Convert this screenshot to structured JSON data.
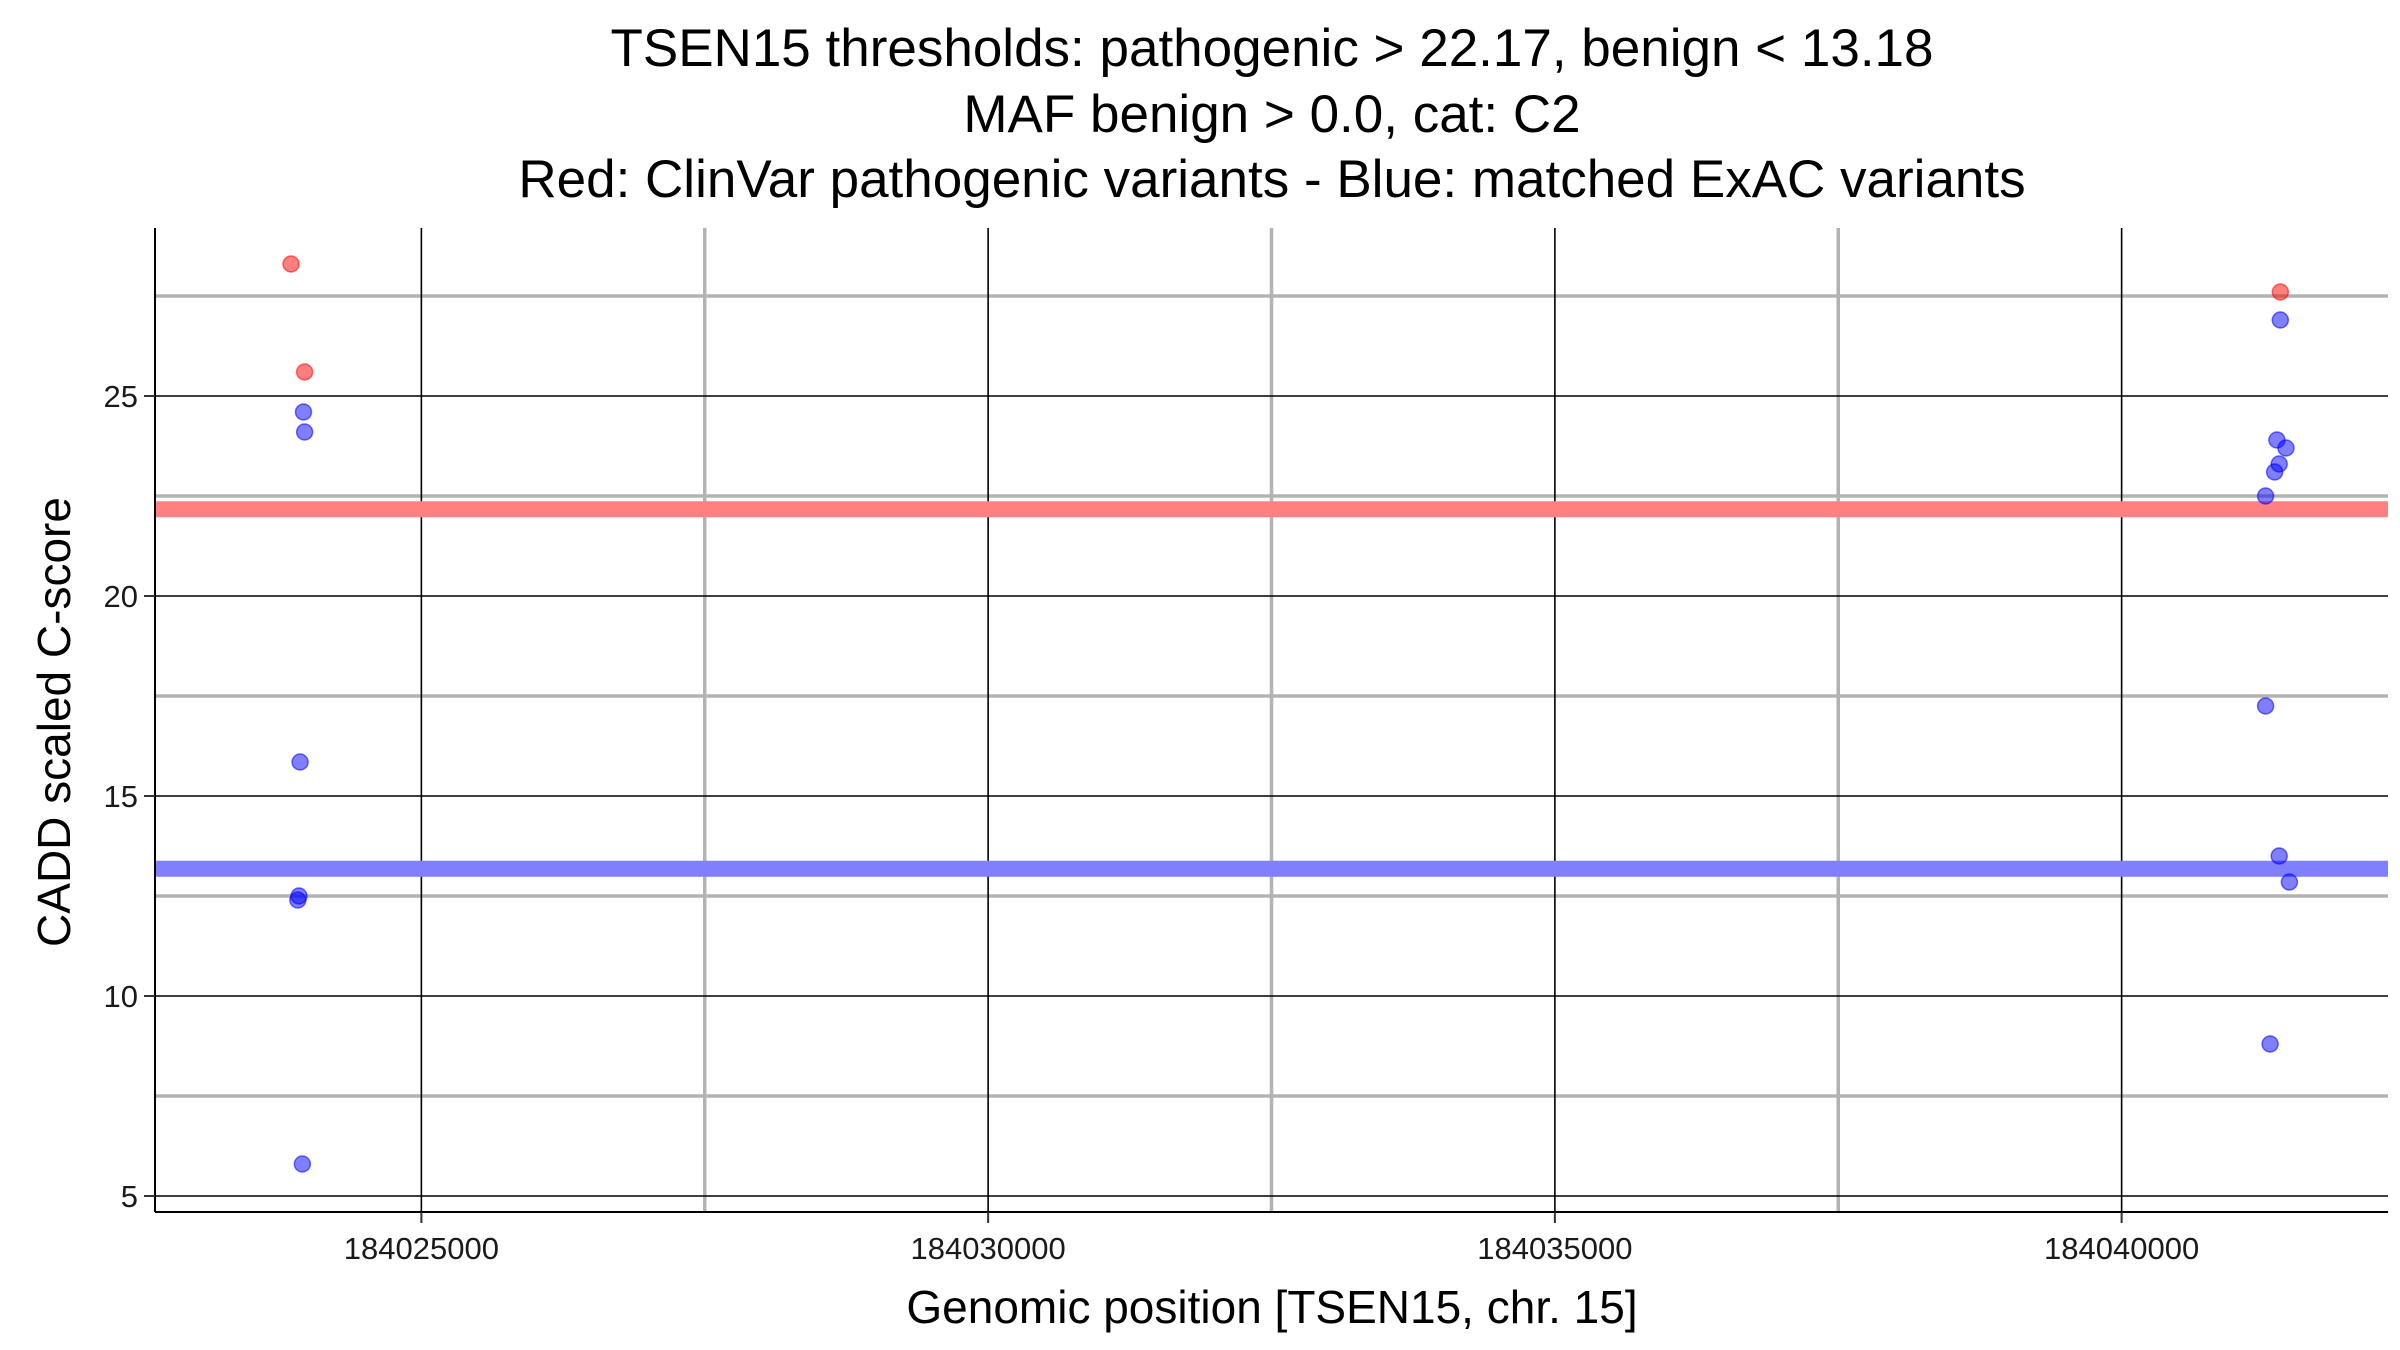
{
  "chart_data": {
    "type": "scatter",
    "title_lines": [
      "TSEN15 thresholds: pathogenic > 22.17, benign < 13.18",
      "MAF benign > 0.0, cat: C2",
      "Red: ClinVar pathogenic variants - Blue: matched ExAC variants"
    ],
    "xlabel": "Genomic position [TSEN15, chr. 15]",
    "ylabel": "CADD scaled C-score",
    "xlim": [
      184022650,
      184042350
    ],
    "ylim": [
      4.6,
      29.2
    ],
    "x_ticks": [
      184025000,
      184030000,
      184035000,
      184040000
    ],
    "x_tick_labels": [
      "184025000",
      "184030000",
      "184035000",
      "184040000"
    ],
    "y_ticks": [
      5,
      10,
      15,
      20,
      25
    ],
    "y_tick_labels": [
      "5",
      "10",
      "15",
      "20",
      "25"
    ],
    "x_minor_grid": [
      184027500,
      184032500,
      184037500
    ],
    "y_minor_grid": [
      7.5,
      12.5,
      17.5,
      22.5,
      27.5
    ],
    "grid": true,
    "thresholds": [
      {
        "name": "pathogenic",
        "value": 22.17,
        "color": "#ff8080"
      },
      {
        "name": "benign",
        "value": 13.18,
        "color": "#7f7fff"
      }
    ],
    "series": [
      {
        "color": "#ff0000",
        "points": [
          {
            "x": 184023850,
            "y": 28.3
          },
          {
            "x": 184023970,
            "y": 25.6
          },
          {
            "x": 184041400,
            "y": 27.6
          }
        ]
      },
      {
        "color": "#0000ff",
        "points": [
          {
            "x": 184023960,
            "y": 24.6
          },
          {
            "x": 184023970,
            "y": 24.1
          },
          {
            "x": 184023930,
            "y": 15.85
          },
          {
            "x": 184023920,
            "y": 12.5
          },
          {
            "x": 184023910,
            "y": 12.4
          },
          {
            "x": 184023950,
            "y": 5.8
          },
          {
            "x": 184041400,
            "y": 26.9
          },
          {
            "x": 184041370,
            "y": 23.9
          },
          {
            "x": 184041450,
            "y": 23.7
          },
          {
            "x": 184041390,
            "y": 23.3
          },
          {
            "x": 184041350,
            "y": 23.1
          },
          {
            "x": 184041270,
            "y": 22.5
          },
          {
            "x": 184041270,
            "y": 17.25
          },
          {
            "x": 184041390,
            "y": 13.5
          },
          {
            "x": 184041480,
            "y": 12.85
          },
          {
            "x": 184041310,
            "y": 8.8
          }
        ]
      }
    ]
  }
}
